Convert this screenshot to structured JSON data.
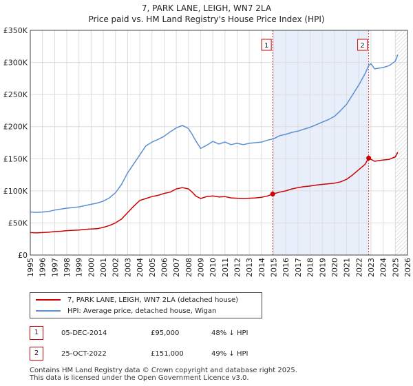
{
  "chart_data": {
    "type": "line",
    "title": "7, PARK LANE, LEIGH, WN7 2LA",
    "subtitle": "Price paid vs. HM Land Registry's House Price Index (HPI)",
    "xlabel": "",
    "ylabel": "",
    "xlim": [
      1995,
      2026
    ],
    "ylim": [
      0,
      350000
    ],
    "x_ticks": [
      "1995",
      "1996",
      "1997",
      "1998",
      "1999",
      "2000",
      "2001",
      "2002",
      "2003",
      "2004",
      "2005",
      "2006",
      "2007",
      "2008",
      "2009",
      "2010",
      "2011",
      "2012",
      "2013",
      "2014",
      "2015",
      "2016",
      "2017",
      "2018",
      "2019",
      "2020",
      "2021",
      "2022",
      "2023",
      "2024",
      "2025",
      "2026"
    ],
    "y_ticks": [
      {
        "value": 0,
        "label": "£0"
      },
      {
        "value": 50000,
        "label": "£50K"
      },
      {
        "value": 100000,
        "label": "£100K"
      },
      {
        "value": 150000,
        "label": "£150K"
      },
      {
        "value": 200000,
        "label": "£200K"
      },
      {
        "value": 250000,
        "label": "£250K"
      },
      {
        "value": 300000,
        "label": "£300K"
      },
      {
        "value": 350000,
        "label": "£350K"
      }
    ],
    "grid": true,
    "series": [
      {
        "name": "7, PARK LANE, LEIGH, WN7 2LA (detached house)",
        "color": "#cc0000",
        "x": [
          1995.0,
          1995.5,
          1996.0,
          1996.5,
          1997.0,
          1997.5,
          1998.0,
          1998.5,
          1999.0,
          1999.5,
          2000.0,
          2000.5,
          2001.0,
          2001.5,
          2002.0,
          2002.5,
          2003.0,
          2003.5,
          2004.0,
          2004.5,
          2005.0,
          2005.5,
          2006.0,
          2006.5,
          2007.0,
          2007.5,
          2008.0,
          2008.3,
          2008.6,
          2009.0,
          2009.5,
          2010.0,
          2010.5,
          2011.0,
          2011.5,
          2012.0,
          2012.5,
          2013.0,
          2013.5,
          2014.0,
          2014.5,
          2014.92,
          2015.5,
          2016.0,
          2016.5,
          2017.0,
          2017.5,
          2018.0,
          2018.5,
          2019.0,
          2019.5,
          2020.0,
          2020.5,
          2021.0,
          2021.5,
          2022.0,
          2022.5,
          2022.81,
          2023.0,
          2023.3,
          2023.6,
          2024.0,
          2024.5,
          2025.0,
          2025.2
        ],
        "y": [
          35000,
          34500,
          35000,
          35500,
          36500,
          37000,
          38000,
          38500,
          39000,
          40000,
          40500,
          41000,
          43000,
          46000,
          50000,
          56000,
          66000,
          76000,
          85000,
          88000,
          91000,
          93000,
          96000,
          98000,
          103000,
          105000,
          103000,
          98000,
          92000,
          88000,
          91000,
          92000,
          90500,
          91000,
          89000,
          88500,
          88000,
          88500,
          89000,
          90000,
          92000,
          95000,
          98000,
          100000,
          103000,
          105000,
          106500,
          107500,
          109000,
          110000,
          111000,
          112000,
          114000,
          118000,
          125000,
          133000,
          141000,
          151000,
          149000,
          146000,
          147000,
          148000,
          149000,
          153000,
          160000
        ]
      },
      {
        "name": "HPI: Average price, detached house, Wigan",
        "color": "#5a8fd0",
        "x": [
          1995.0,
          1995.5,
          1996.0,
          1996.5,
          1997.0,
          1997.5,
          1998.0,
          1998.5,
          1999.0,
          1999.5,
          2000.0,
          2000.5,
          2001.0,
          2001.5,
          2002.0,
          2002.5,
          2003.0,
          2003.5,
          2004.0,
          2004.5,
          2005.0,
          2005.5,
          2006.0,
          2006.5,
          2007.0,
          2007.5,
          2008.0,
          2008.3,
          2008.6,
          2009.0,
          2009.5,
          2010.0,
          2010.5,
          2011.0,
          2011.5,
          2012.0,
          2012.5,
          2013.0,
          2013.5,
          2014.0,
          2014.5,
          2015.0,
          2015.5,
          2016.0,
          2016.5,
          2017.0,
          2017.5,
          2018.0,
          2018.5,
          2019.0,
          2019.5,
          2020.0,
          2020.5,
          2021.0,
          2021.5,
          2022.0,
          2022.5,
          2022.81,
          2023.0,
          2023.3,
          2023.6,
          2024.0,
          2024.5,
          2025.0,
          2025.2
        ],
        "y": [
          67000,
          66500,
          67000,
          68000,
          70000,
          71500,
          73000,
          74000,
          75000,
          77000,
          79000,
          81000,
          84000,
          89000,
          97000,
          110000,
          128000,
          142000,
          156000,
          170000,
          176000,
          180000,
          185000,
          192000,
          198000,
          202000,
          197000,
          188000,
          178000,
          166000,
          171000,
          177000,
          173000,
          176000,
          172000,
          174000,
          172000,
          174000,
          175000,
          176000,
          179000,
          181000,
          186000,
          188000,
          191000,
          193000,
          196000,
          199000,
          203000,
          207000,
          211000,
          216000,
          225000,
          235000,
          250000,
          265000,
          282000,
          295000,
          298000,
          290000,
          291000,
          292000,
          295000,
          302000,
          312000
        ]
      }
    ],
    "sale_markers": [
      {
        "label": "1",
        "x": 2014.92,
        "y": 95000
      },
      {
        "label": "2",
        "x": 2022.81,
        "y": 151000
      }
    ],
    "shaded_period": [
      2014.92,
      2022.81
    ],
    "forecast_start": 2025.0
  },
  "legend": {
    "property": "7, PARK LANE, LEIGH, WN7 2LA (detached house)",
    "hpi": "HPI: Average price, detached house, Wigan"
  },
  "transactions": [
    {
      "num": "1",
      "date": "05-DEC-2014",
      "price": "£95,000",
      "hpi_diff": "48% ↓ HPI"
    },
    {
      "num": "2",
      "date": "25-OCT-2022",
      "price": "£151,000",
      "hpi_diff": "49% ↓ HPI"
    }
  ],
  "footer": {
    "line1": "Contains HM Land Registry data © Crown copyright and database right 2025.",
    "line2": "This data is licensed under the Open Government Licence v3.0."
  },
  "colors": {
    "property": "#cc0000",
    "hpi": "#5a8fd0",
    "shade": "#e8eefa",
    "grid": "#dddddd"
  }
}
